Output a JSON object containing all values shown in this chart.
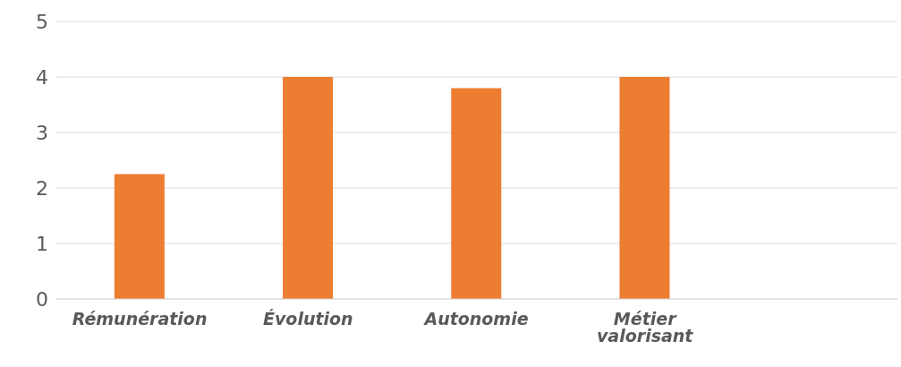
{
  "chart_data": {
    "type": "bar",
    "categories": [
      "Rémunération",
      "Évolution",
      "Autonomie",
      "Métier valorisant",
      null
    ],
    "values": [
      2.25,
      4.0,
      3.8,
      4.0,
      null
    ],
    "color": "#ed7d31",
    "ylim": [
      0,
      5
    ],
    "yticks": [
      0,
      1,
      2,
      3,
      4,
      5
    ],
    "grid": "y"
  }
}
